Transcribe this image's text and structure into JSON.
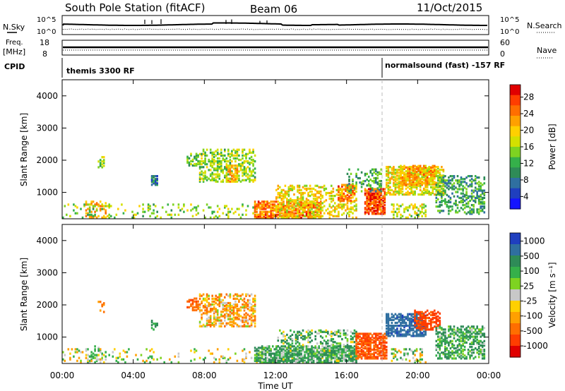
{
  "header": {
    "title": "South Pole Station (fitACF)",
    "beam": "Beam 06",
    "date": "11/Oct/2015"
  },
  "panels": {
    "nsky": {
      "left_label": "N.Sky",
      "left_ticks": [
        "10^5",
        "10^0"
      ],
      "right_label": "N.Search",
      "right_ticks": [
        "10^5",
        "10^0"
      ]
    },
    "freq": {
      "left_label_1": "Freq.",
      "left_label_2": "[MHz]",
      "left_ticks": [
        "18",
        "8"
      ],
      "right_label": "Nave",
      "right_ticks": [
        "60",
        "0"
      ]
    },
    "cpid": {
      "label": "CPID",
      "seg1": "themis 3300 RF",
      "seg2": "normalsound (fast) -157 RF"
    }
  },
  "colorbars": {
    "power": {
      "label": "Power [dB]",
      "ticks": [
        "28",
        "24",
        "20",
        "16",
        "12",
        "8",
        "4"
      ],
      "colors": [
        "#e00000",
        "#ff3d00",
        "#ff6e00",
        "#ffa000",
        "#ffd000",
        "#d4e000",
        "#7ed321",
        "#35b04a",
        "#2e8b57",
        "#2f6fa0",
        "#1f3fbf",
        "#1414ff"
      ]
    },
    "velocity": {
      "label": "Velocity [m s⁻¹]",
      "ticks": [
        "1000",
        "500",
        "100",
        "25",
        "-25",
        "-100",
        "-500",
        "-1000"
      ],
      "colors": [
        "#1f3fbf",
        "#2f6fa0",
        "#2e8b57",
        "#35b04a",
        "#7ed321",
        "#c8c8c8",
        "#ffd000",
        "#ffa000",
        "#ff6e00",
        "#ff3d00",
        "#e00000"
      ]
    }
  },
  "axes": {
    "ylabel": "Slant Range [km]",
    "xlabel": "Time UT",
    "yticks": [
      "4000",
      "3000",
      "2000",
      "1000"
    ],
    "xticks": [
      "00:00",
      "04:00",
      "08:00",
      "12:00",
      "16:00",
      "20:00",
      "00:00"
    ]
  },
  "chart_data": [
    {
      "type": "heatmap",
      "name": "power",
      "xlabel": "Time UT",
      "ylabel": "Slant Range [km]",
      "xlim": [
        "00:00",
        "24:00"
      ],
      "ylim": [
        180,
        4500
      ],
      "colorbar": "Power [dB]",
      "cbar_ticks": [
        4,
        8,
        12,
        16,
        20,
        24,
        28
      ],
      "blobs": [
        {
          "t": [
            1.3,
            2.5
          ],
          "r": [
            180,
            700
          ],
          "v": 22,
          "d": 0.35
        },
        {
          "t": [
            0.0,
            11.0
          ],
          "r": [
            180,
            600
          ],
          "v": 14,
          "d": 0.12
        },
        {
          "t": [
            2.0,
            2.4
          ],
          "r": [
            1700,
            2100
          ],
          "v": 14,
          "d": 0.35
        },
        {
          "t": [
            5.0,
            5.3
          ],
          "r": [
            1200,
            1500
          ],
          "v": 6,
          "d": 0.45
        },
        {
          "t": [
            7.0,
            7.6
          ],
          "r": [
            1800,
            2200
          ],
          "v": 12,
          "d": 0.5
        },
        {
          "t": [
            7.7,
            10.8
          ],
          "r": [
            1300,
            2300
          ],
          "v": 14,
          "d": 0.45
        },
        {
          "t": [
            9.2,
            9.8
          ],
          "r": [
            1300,
            1800
          ],
          "v": 20,
          "d": 0.6
        },
        {
          "t": [
            10.8,
            14.5
          ],
          "r": [
            180,
            700
          ],
          "v": 24,
          "d": 0.7
        },
        {
          "t": [
            12.0,
            16.5
          ],
          "r": [
            180,
            1200
          ],
          "v": 18,
          "d": 0.35
        },
        {
          "t": [
            15.5,
            16.5
          ],
          "r": [
            700,
            1200
          ],
          "v": 24,
          "d": 0.55
        },
        {
          "t": [
            17.0,
            18.2
          ],
          "r": [
            300,
            1100
          ],
          "v": 26,
          "d": 0.75
        },
        {
          "t": [
            16.0,
            18.0
          ],
          "r": [
            1000,
            1700
          ],
          "v": 10,
          "d": 0.25
        },
        {
          "t": [
            18.2,
            21.5
          ],
          "r": [
            900,
            1800
          ],
          "v": 18,
          "d": 0.6
        },
        {
          "t": [
            19.0,
            21.0
          ],
          "r": [
            1200,
            1800
          ],
          "v": 22,
          "d": 0.55
        },
        {
          "t": [
            21.0,
            23.8
          ],
          "r": [
            300,
            1500
          ],
          "v": 10,
          "d": 0.4
        },
        {
          "t": [
            18.5,
            20.5
          ],
          "r": [
            180,
            600
          ],
          "v": 16,
          "d": 0.3
        }
      ]
    },
    {
      "type": "heatmap",
      "name": "velocity",
      "xlabel": "Time UT",
      "ylabel": "Slant Range [km]",
      "xlim": [
        "00:00",
        "24:00"
      ],
      "ylim": [
        180,
        4500
      ],
      "colorbar": "Velocity [m s⁻¹]",
      "cbar_ticks": [
        -1000,
        -500,
        -100,
        -25,
        25,
        100,
        500,
        1000
      ],
      "blobs": [
        {
          "t": [
            1.3,
            2.5
          ],
          "r": [
            180,
            700
          ],
          "v": 50,
          "d": 0.3
        },
        {
          "t": [
            0.0,
            11.0
          ],
          "r": [
            180,
            600
          ],
          "v": 0,
          "d": 0.1
        },
        {
          "t": [
            2.0,
            2.4
          ],
          "r": [
            1700,
            2100
          ],
          "v": -200,
          "d": 0.3
        },
        {
          "t": [
            5.0,
            5.3
          ],
          "r": [
            1200,
            1500
          ],
          "v": 200,
          "d": 0.4
        },
        {
          "t": [
            7.0,
            7.6
          ],
          "r": [
            1800,
            2200
          ],
          "v": -300,
          "d": 0.5
        },
        {
          "t": [
            7.7,
            10.8
          ],
          "r": [
            1300,
            2300
          ],
          "v": -100,
          "d": 0.45
        },
        {
          "t": [
            10.8,
            16.5
          ],
          "r": [
            180,
            700
          ],
          "v": 150,
          "d": 0.65
        },
        {
          "t": [
            12.0,
            16.5
          ],
          "r": [
            180,
            1200
          ],
          "v": 100,
          "d": 0.3
        },
        {
          "t": [
            16.5,
            18.3
          ],
          "r": [
            300,
            1100
          ],
          "v": -400,
          "d": 0.7
        },
        {
          "t": [
            18.2,
            20.5
          ],
          "r": [
            1000,
            1700
          ],
          "v": 700,
          "d": 0.65
        },
        {
          "t": [
            19.8,
            21.3
          ],
          "r": [
            1200,
            1800
          ],
          "v": -500,
          "d": 0.55
        },
        {
          "t": [
            21.0,
            23.8
          ],
          "r": [
            300,
            1300
          ],
          "v": 150,
          "d": 0.45
        },
        {
          "t": [
            18.5,
            20.5
          ],
          "r": [
            180,
            600
          ],
          "v": 30,
          "d": 0.25
        }
      ]
    }
  ]
}
